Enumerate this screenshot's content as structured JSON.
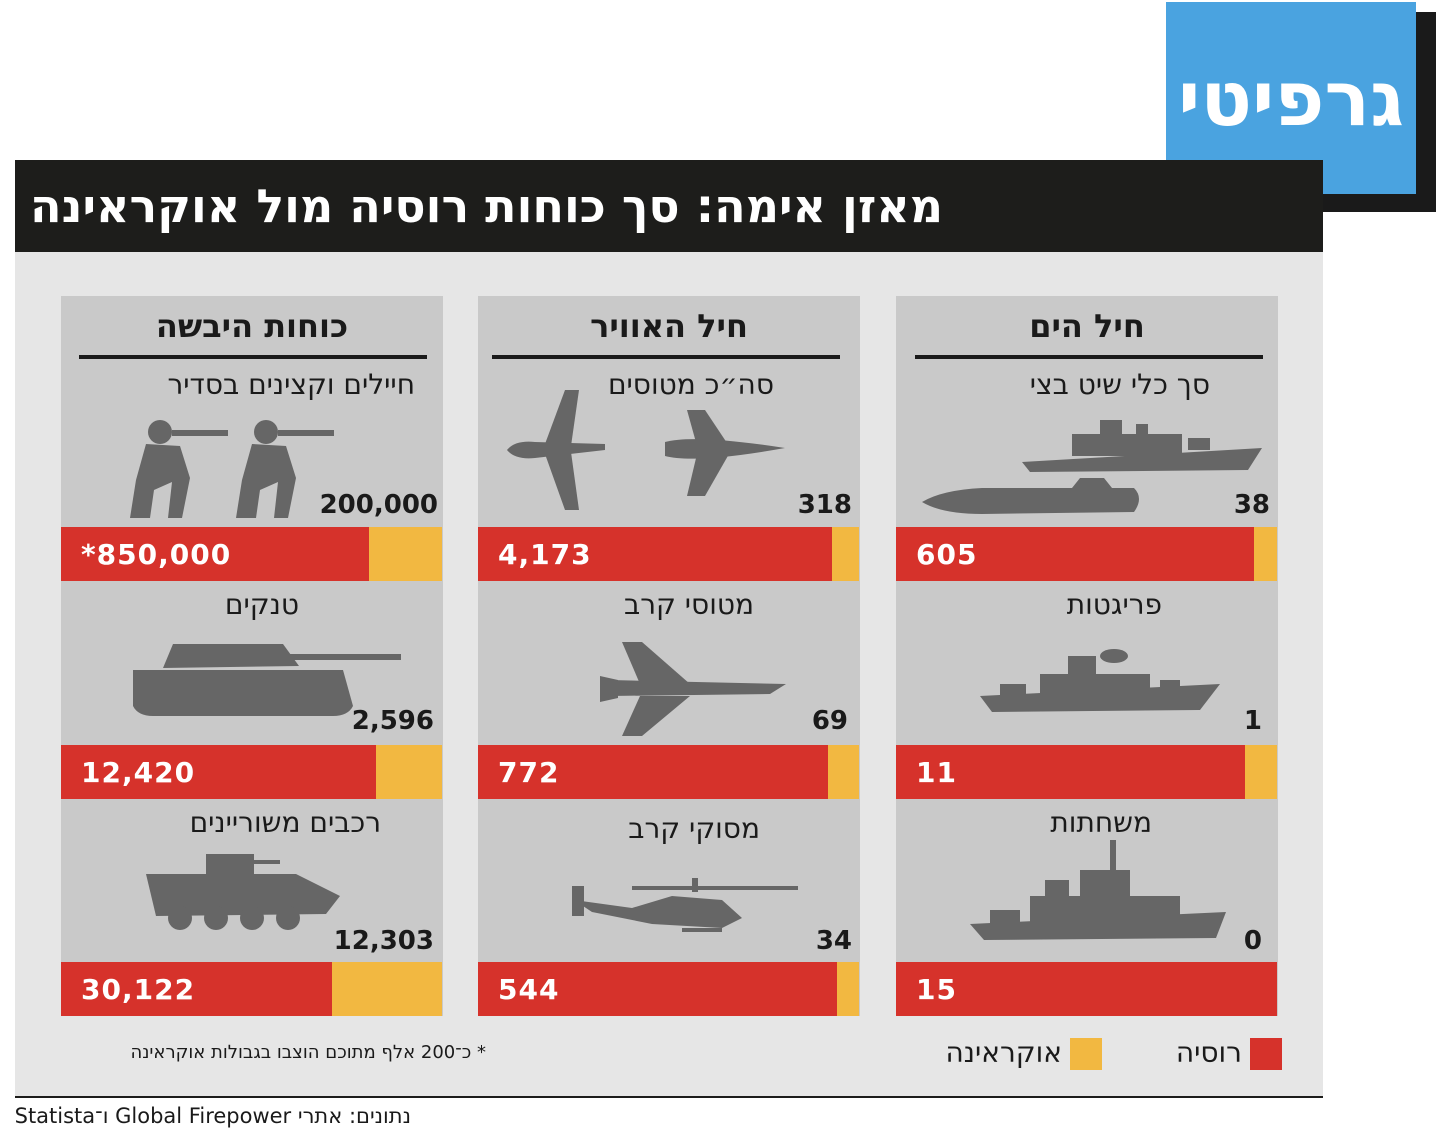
{
  "brand": "גרפיטי",
  "title": "מאזן אימה: סך כוחות רוסיה מול אוקראינה",
  "legend": {
    "russia": "רוסיה",
    "ukraine": "אוקראינה"
  },
  "colors": {
    "russia": "#d6322b",
    "ukraine": "#f2b841",
    "panel": "#e6e6e6",
    "column": "#c9c9c9",
    "title_bar": "#1d1d1b",
    "brand": "#4aa3e0"
  },
  "footnote": "* כ־200 אלף מתוכם הוצבו בגבולות אוקראינה",
  "source": "נתונים: אתרי Global Firepower ו־Statista",
  "columns": [
    {
      "title": "חיל הים"
    },
    {
      "title": "חיל האוויר"
    },
    {
      "title": "כוחות היבשה"
    }
  ],
  "rows": [
    {
      "label": "סך כלי שיט בצי",
      "russia_label": "605",
      "ukraine_label": "38",
      "icon": "warship-submarine-icon"
    },
    {
      "label": "פריגטות",
      "russia_label": "11",
      "ukraine_label": "1",
      "icon": "frigate-icon"
    },
    {
      "label": "משחתות",
      "russia_label": "15",
      "ukraine_label": "0",
      "icon": "destroyer-icon"
    },
    {
      "label": "סה״כ מטוסים",
      "russia_label": "4,173",
      "ukraine_label": "318",
      "icon": "aircraft-icon"
    },
    {
      "label": "מטוסי קרב",
      "russia_label": "772",
      "ukraine_label": "69",
      "icon": "fighter-jet-icon"
    },
    {
      "label": "מסוקי קרב",
      "russia_label": "544",
      "ukraine_label": "34",
      "icon": "attack-helicopter-icon"
    },
    {
      "label": "חיילים וקצינים בסדיר",
      "russia_label": "*850,000",
      "ukraine_label": "200,000",
      "icon": "soldiers-icon"
    },
    {
      "label": "טנקים",
      "russia_label": "12,420",
      "ukraine_label": "2,596",
      "icon": "tank-icon"
    },
    {
      "label": "רכבים משוריינים",
      "russia_label": "30,122",
      "ukraine_label": "12,303",
      "icon": "armored-vehicle-icon"
    }
  ],
  "chart_data": {
    "type": "bar",
    "title": "מאזן אימה: סך כוחות רוסיה מול אוקראינה",
    "groups": [
      "חיל הים",
      "חיל האוויר",
      "כוחות היבשה"
    ],
    "categories": [
      "סך כלי שיט בצי",
      "פריגטות",
      "משחתות",
      "סה״כ מטוסים",
      "מטוסי קרב",
      "מסוקי קרב",
      "חיילים וקצינים בסדיר",
      "טנקים",
      "רכבים משוריינים"
    ],
    "series": [
      {
        "name": "רוסיה",
        "values": [
          605,
          11,
          15,
          4173,
          772,
          544,
          850000,
          12420,
          30122
        ]
      },
      {
        "name": "אוקראינה",
        "values": [
          38,
          1,
          0,
          318,
          69,
          34,
          200000,
          2596,
          12303
        ]
      }
    ],
    "stacking": "share-of-total",
    "legend": "bottom-right"
  }
}
